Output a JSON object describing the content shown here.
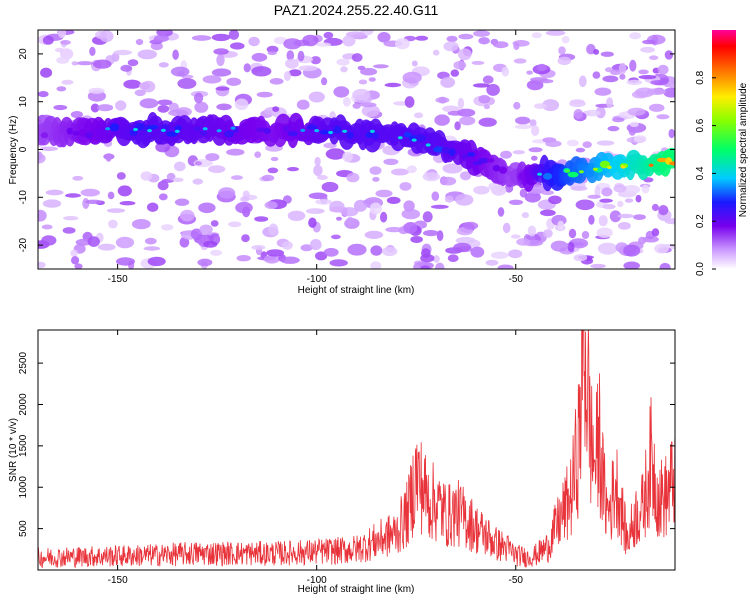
{
  "title": "PAZ1.2024.255.22.40.G11",
  "chart_data": [
    {
      "type": "heatmap",
      "xlabel": "Height of straight line (km)",
      "ylabel": "Frequency (Hz)",
      "xlim": [
        -170,
        -10
      ],
      "ylim": [
        -25,
        25
      ],
      "xticks": [
        -150,
        -100,
        -50
      ],
      "yticks": [
        -20,
        -10,
        0,
        10,
        20
      ],
      "colorbar": {
        "label": "Normalized spectral amplitude",
        "range": [
          0,
          1
        ],
        "ticks": [
          "0.0",
          "0.2",
          "0.4",
          "0.6",
          "0.8"
        ],
        "colormap": "rainbow: white-purple-blue-cyan-green-yellow-red-magenta"
      },
      "ridge": [
        {
          "x": -170,
          "y": 3.5
        },
        {
          "x": -150,
          "y": 4
        },
        {
          "x": -140,
          "y": 4
        },
        {
          "x": -130,
          "y": 4
        },
        {
          "x": -120,
          "y": 4
        },
        {
          "x": -110,
          "y": 3.5
        },
        {
          "x": -100,
          "y": 4
        },
        {
          "x": -90,
          "y": 3.5
        },
        {
          "x": -80,
          "y": 3
        },
        {
          "x": -70,
          "y": 1
        },
        {
          "x": -60,
          "y": -2
        },
        {
          "x": -50,
          "y": -5
        },
        {
          "x": -40,
          "y": -5
        },
        {
          "x": -30,
          "y": -4
        },
        {
          "x": -20,
          "y": -3
        },
        {
          "x": -10,
          "y": -2.5
        }
      ],
      "peak_amplitude": [
        {
          "x": -170,
          "value": 0.15
        },
        {
          "x": -145,
          "value": 0.3
        },
        {
          "x": -130,
          "value": 0.28
        },
        {
          "x": -110,
          "value": 0.22
        },
        {
          "x": -95,
          "value": 0.3
        },
        {
          "x": -80,
          "value": 0.3
        },
        {
          "x": -70,
          "value": 0.3
        },
        {
          "x": -60,
          "value": 0.25
        },
        {
          "x": -50,
          "value": 0.15
        },
        {
          "x": -38,
          "value": 0.45
        },
        {
          "x": -25,
          "value": 0.6
        },
        {
          "x": -12,
          "value": 0.8
        }
      ]
    },
    {
      "type": "line",
      "xlabel": "Height of straight line (km)",
      "ylabel": "SNR (10 * v/v)",
      "xlim": [
        -170,
        -10
      ],
      "ylim": [
        0,
        2900
      ],
      "xticks": [
        -150,
        -100,
        -50
      ],
      "yticks": [
        500,
        1000,
        1500,
        2000,
        2500
      ],
      "color": "#e8333a",
      "series": [
        {
          "x": [
            -170,
            -160,
            -150,
            -140,
            -130,
            -120,
            -110,
            -100,
            -95,
            -90,
            -85,
            -80,
            -77,
            -75,
            -72,
            -70,
            -67,
            -65,
            -62,
            -60,
            -57,
            -55,
            -52,
            -50,
            -47,
            -45,
            -42,
            -40,
            -38,
            -36,
            -34,
            -33,
            -32,
            -31,
            -30,
            -29,
            -28,
            -27,
            -26,
            -25,
            -24,
            -23,
            -22,
            -20,
            -18,
            -16,
            -14,
            -12,
            -10
          ],
          "values": [
            150,
            160,
            170,
            180,
            200,
            200,
            200,
            220,
            230,
            250,
            350,
            450,
            700,
            1150,
            850,
            800,
            650,
            700,
            600,
            500,
            400,
            320,
            260,
            180,
            150,
            180,
            280,
            500,
            700,
            900,
            1600,
            2900,
            2200,
            1500,
            1300,
            1600,
            1000,
            700,
            800,
            1050,
            900,
            600,
            350,
            650,
            750,
            1350,
            850,
            900,
            1150
          ]
        }
      ]
    }
  ]
}
